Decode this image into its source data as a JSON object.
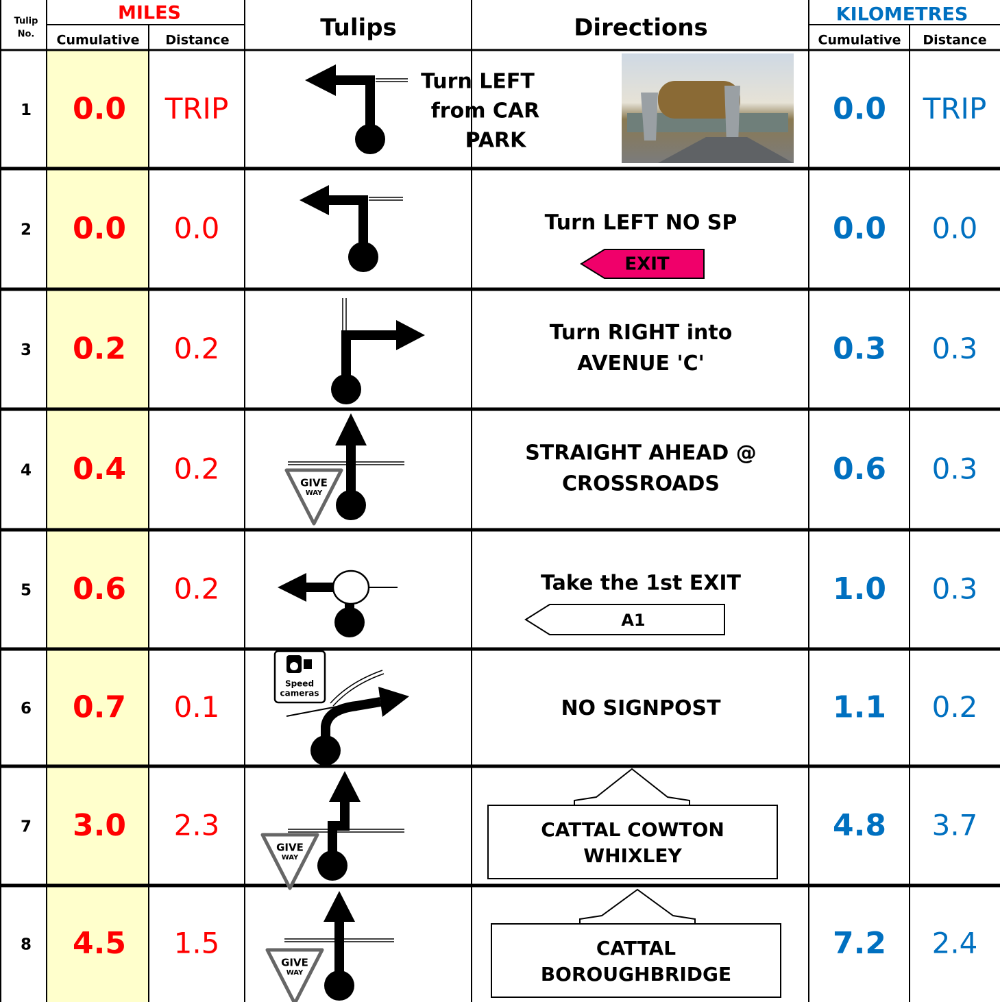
{
  "header": {
    "tulip_no": [
      "Tulip",
      "No."
    ],
    "miles": "MILES",
    "miles_columns": [
      "Cumulative",
      "Distance"
    ],
    "tulips": "Tulips",
    "directions": "Directions",
    "kilometres": "KILOMETRES",
    "km_columns": [
      "Cumulative",
      "Distance"
    ]
  },
  "rows": [
    {
      "no": 1,
      "miles_cumulative": "0.0",
      "miles_distance": "TRIP",
      "directions": [
        "Turn LEFT",
        "from CAR",
        "PARK"
      ],
      "km_cumulative": "0.0",
      "km_distance": "TRIP"
    },
    {
      "no": 2,
      "miles_cumulative": "0.0",
      "miles_distance": "0.0",
      "directions": [
        "Turn LEFT NO SP"
      ],
      "sign": [
        "EXIT"
      ],
      "km_cumulative": "0.0",
      "km_distance": "0.0"
    },
    {
      "no": 3,
      "miles_cumulative": "0.2",
      "miles_distance": "0.2",
      "directions": [
        "Turn RIGHT into",
        "AVENUE 'C'"
      ],
      "km_cumulative": "0.3",
      "km_distance": "0.3"
    },
    {
      "no": 4,
      "miles_cumulative": "0.4",
      "miles_distance": "0.2",
      "directions": [
        "STRAIGHT AHEAD @",
        "CROSSROADS"
      ],
      "give_way": [
        "GIVE",
        "WAY"
      ],
      "km_cumulative": "0.6",
      "km_distance": "0.3"
    },
    {
      "no": 5,
      "miles_cumulative": "0.6",
      "miles_distance": "0.2",
      "directions": [
        "Take the 1st EXIT"
      ],
      "sign": [
        "A1"
      ],
      "km_cumulative": "1.0",
      "km_distance": "0.3"
    },
    {
      "no": 6,
      "miles_cumulative": "0.7",
      "miles_distance": "0.1",
      "directions": [
        "NO SIGNPOST"
      ],
      "camera": [
        "Speed",
        "cameras"
      ],
      "km_cumulative": "1.1",
      "km_distance": "0.2"
    },
    {
      "no": 7,
      "miles_cumulative": "3.0",
      "miles_distance": "2.3",
      "sign": [
        "CATTAL COWTON",
        "WHIXLEY"
      ],
      "give_way": [
        "GIVE",
        "WAY"
      ],
      "km_cumulative": "4.8",
      "km_distance": "3.7"
    },
    {
      "no": 8,
      "miles_cumulative": "4.5",
      "miles_distance": "1.5",
      "sign": [
        "CATTAL",
        "BOROUGHBRIDGE"
      ],
      "give_way": [
        "GIVE",
        "WAY"
      ],
      "km_cumulative": "7.2",
      "km_distance": "2.4"
    }
  ]
}
